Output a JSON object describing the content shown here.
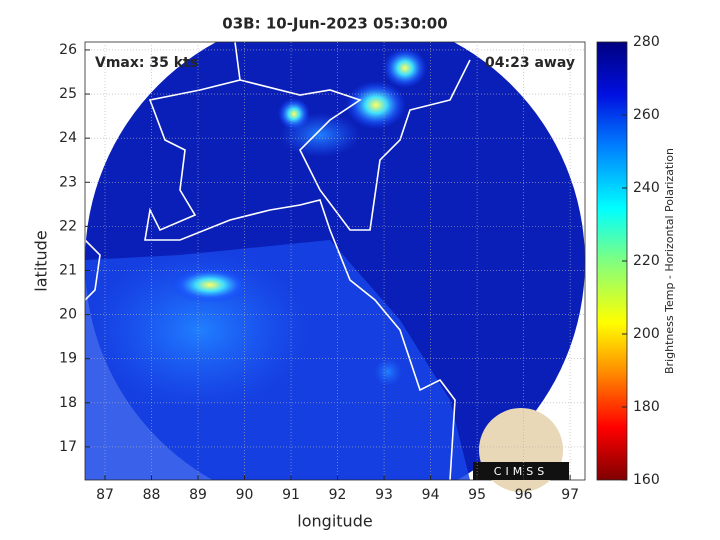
{
  "chart_data": {
    "type": "map",
    "title": "03B: 10-Jun-2023 05:30:00",
    "xlabel": "longitude",
    "ylabel": "latitude",
    "xlim": [
      86.57,
      97.32
    ],
    "ylim": [
      16.25,
      26.18
    ],
    "xticks": [
      87,
      88,
      89,
      90,
      91,
      92,
      93,
      94,
      95,
      96,
      97
    ],
    "yticks": [
      17,
      18,
      19,
      20,
      21,
      22,
      23,
      24,
      25,
      26
    ],
    "grid": true,
    "annotations": [
      "Vmax: 35 kts",
      "04:23 away"
    ],
    "logo": "CIMSS",
    "colorbar": {
      "label": "Brightness Temp - Horizontal Polarization",
      "clim": [
        160,
        280
      ],
      "ticks": [
        160,
        180,
        200,
        220,
        240,
        260,
        280
      ]
    }
  }
}
